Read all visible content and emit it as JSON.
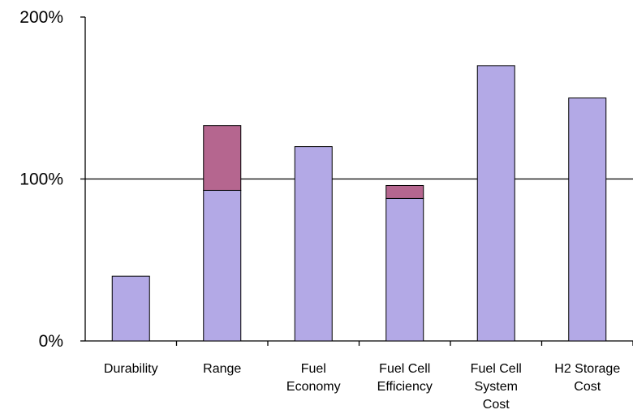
{
  "chart_data": {
    "type": "bar",
    "stacked": true,
    "categories": [
      [
        "Durability"
      ],
      [
        "Range"
      ],
      [
        "Fuel",
        "Economy"
      ],
      [
        "Fuel Cell",
        "Efficiency"
      ],
      [
        "Fuel Cell",
        "System",
        "Cost"
      ],
      [
        "H2 Storage",
        "Cost"
      ]
    ],
    "series": [
      {
        "color": "#b3a9e6",
        "values": [
          40,
          93,
          120,
          88,
          170,
          150
        ]
      },
      {
        "color": "#b5668f",
        "values": [
          0,
          40,
          0,
          8,
          0,
          0
        ]
      }
    ],
    "ylim": [
      0,
      200
    ],
    "yticks": [
      {
        "value": 0,
        "label": "0%"
      },
      {
        "value": 100,
        "label": "100%"
      },
      {
        "value": 200,
        "label": "200%"
      }
    ],
    "reference_line": 100,
    "xlabel": "",
    "ylabel": "",
    "title": "",
    "grid": false,
    "legend": "none"
  }
}
